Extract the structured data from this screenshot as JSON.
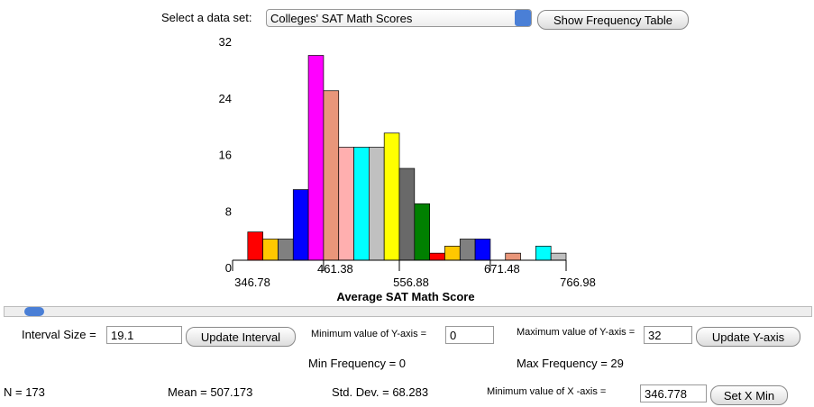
{
  "chart_data": {
    "type": "histogram",
    "bins": [
      365.88,
      384.98,
      404.08,
      423.18,
      442.28,
      461.38,
      480.48,
      499.58,
      518.68,
      537.78,
      556.88,
      575.98,
      595.08,
      614.18,
      633.28,
      652.38,
      671.48,
      690.58,
      709.68,
      728.78,
      747.88,
      766.98
    ],
    "values": [
      4,
      3,
      3,
      10,
      29,
      24,
      16,
      16,
      16,
      18,
      13,
      8,
      1,
      2,
      3,
      3,
      0,
      1,
      0,
      2,
      1
    ],
    "colors": [
      "#ff0000",
      "#ffc800",
      "#808080",
      "#0000ff",
      "#ff00ff",
      "#e9967a",
      "#ffafaf",
      "#00ffff",
      "#c0c0c0",
      "#ffff00",
      "#696969",
      "#008000",
      "#ff0000",
      "#ffc800",
      "#808080",
      "#0000ff",
      "#ff00ff",
      "#e9967a",
      "#ffafaf",
      "#00ffff",
      "#c0c0c0"
    ],
    "xlim": [
      346.78,
      766.98
    ],
    "xticks": [
      346.78,
      461.38,
      556.88,
      671.48,
      766.98
    ],
    "ylim": [
      0,
      32
    ],
    "yticks": [
      0,
      8,
      16,
      24,
      32
    ],
    "xlabel": "Average SAT Math Score"
  },
  "ui": {
    "dataset_label": "Select a data set:",
    "dataset": "Colleges' SAT Math Scores",
    "show_table": "Show Frequency Table",
    "interval_label": "Interval Size =",
    "interval_value": "19.1",
    "update_interval": "Update Interval",
    "ymin_label": "Minimum value of Y-axis =",
    "ymin_value": "0",
    "ymax_label": "Maximum value of Y-axis =",
    "ymax_value": "32",
    "update_y": "Update Y-axis",
    "min_freq": "Min Frequency = 0",
    "max_freq": "Max Frequency = 29",
    "n": "N = 173",
    "mean": "Mean = 507.173",
    "sd": "Std. Dev. = 68.283",
    "xmin_label": "Minimum value of X -axis =",
    "xmin_value": "346.778",
    "set_xmin": "Set X Min"
  }
}
